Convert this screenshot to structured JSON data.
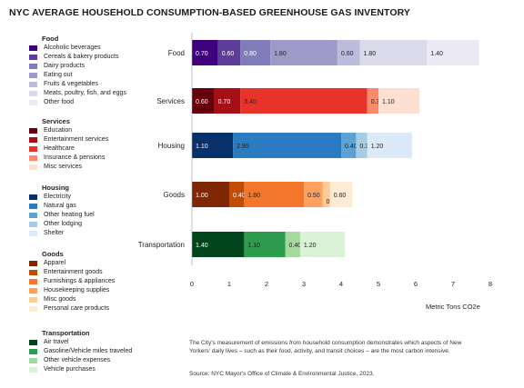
{
  "title": "NYC AVERAGE HOUSEHOLD CONSUMPTION-BASED GREENHOUSE GAS INVENTORY",
  "legend": [
    {
      "heading": "Food",
      "items": [
        {
          "label": "Alcoholic beverages",
          "color": "#3f007d"
        },
        {
          "label": "Cereals & bakery products",
          "color": "#5e3c99"
        },
        {
          "label": "Dairy products",
          "color": "#807dba"
        },
        {
          "label": "Eating out",
          "color": "#9e9ac8"
        },
        {
          "label": "Fruits & vegetables",
          "color": "#bcbddc"
        },
        {
          "label": "Meats, poultry, fish, and eggs",
          "color": "#dadaeb"
        },
        {
          "label": "Other food",
          "color": "#ebe9f3"
        }
      ]
    },
    {
      "heading": "Services",
      "items": [
        {
          "label": "Education",
          "color": "#67000d"
        },
        {
          "label": "Entertainment services",
          "color": "#a50f15"
        },
        {
          "label": "Healthcare",
          "color": "#e8332b"
        },
        {
          "label": "Insurance & pensions",
          "color": "#fc8a6a"
        },
        {
          "label": "Misc services",
          "color": "#fde0d2"
        }
      ]
    },
    {
      "heading": "Housing",
      "items": [
        {
          "label": "Electricity",
          "color": "#08306b"
        },
        {
          "label": "Natural gas",
          "color": "#2a7bc1"
        },
        {
          "label": "Other heating fuel",
          "color": "#5da2d3"
        },
        {
          "label": "Other lodging",
          "color": "#a5cce5"
        },
        {
          "label": "Shelter",
          "color": "#dceaf7"
        }
      ]
    },
    {
      "heading": "Goods",
      "items": [
        {
          "label": "Apparel",
          "color": "#7f2704"
        },
        {
          "label": "Entertainment goods",
          "color": "#c14c06"
        },
        {
          "label": "Furnishings & appliances",
          "color": "#f4762b"
        },
        {
          "label": "Housekeeping supplies",
          "color": "#fda060"
        },
        {
          "label": "Misc goods",
          "color": "#fdcb95"
        },
        {
          "label": "Personal care products",
          "color": "#fdebd3"
        }
      ]
    },
    {
      "heading": "Transportation",
      "items": [
        {
          "label": "Air travel",
          "color": "#00441b"
        },
        {
          "label": "Gasoline/Vehicle miles traveled",
          "color": "#2d9c4e"
        },
        {
          "label": "Other vehicle expenses",
          "color": "#a4d99e"
        },
        {
          "label": "Vehicle purchases",
          "color": "#dcf2d8"
        }
      ]
    }
  ],
  "chart_data": {
    "type": "bar",
    "orientation": "horizontal",
    "stacked": true,
    "title": "NYC AVERAGE HOUSEHOLD CONSUMPTION-BASED GREENHOUSE GAS INVENTORY",
    "xlabel": "Metric Tons CO2e",
    "xlim": [
      0,
      8
    ],
    "xticks": [
      0,
      1,
      2,
      3,
      4,
      5,
      6,
      7,
      8
    ],
    "grid": false,
    "categories": [
      "Food",
      "Services",
      "Housing",
      "Goods",
      "Transportation"
    ],
    "bars": [
      {
        "category": "Food",
        "segments": [
          {
            "label": "0.70",
            "value": 0.7,
            "color": "#3f007d",
            "text_color": "#ffffff"
          },
          {
            "label": "0.60",
            "value": 0.6,
            "color": "#5e3c99",
            "text_color": "#ffffff"
          },
          {
            "label": "0.80",
            "value": 0.8,
            "color": "#807dba",
            "text_color": "#ffffff"
          },
          {
            "label": "1.80",
            "value": 1.8,
            "color": "#9e9ac8",
            "text_color": "#222222"
          },
          {
            "label": "0.60",
            "value": 0.6,
            "color": "#bcbddc",
            "text_color": "#222222"
          },
          {
            "label": "1.80",
            "value": 1.8,
            "color": "#dadaeb",
            "text_color": "#222222"
          },
          {
            "label": "1.40",
            "value": 1.4,
            "color": "#ebe9f3",
            "text_color": "#222222"
          }
        ]
      },
      {
        "category": "Services",
        "segments": [
          {
            "label": "0.60",
            "value": 0.6,
            "color": "#67000d",
            "text_color": "#ffffff"
          },
          {
            "label": "0.70",
            "value": 0.7,
            "color": "#a50f15",
            "text_color": "#ffffff"
          },
          {
            "label": "3.40",
            "value": 3.4,
            "color": "#e8332b",
            "text_color": "#222222"
          },
          {
            "label": "0.30",
            "value": 0.3,
            "color": "#fc8a6a",
            "text_color": "#222222"
          },
          {
            "label": "1.10",
            "value": 1.1,
            "color": "#fde0d2",
            "text_color": "#222222"
          }
        ]
      },
      {
        "category": "Housing",
        "segments": [
          {
            "label": "1.10",
            "value": 1.1,
            "color": "#08306b",
            "text_color": "#ffffff"
          },
          {
            "label": "2.90",
            "value": 2.9,
            "color": "#2a7bc1",
            "text_color": "#222222"
          },
          {
            "label": "0.40",
            "value": 0.4,
            "color": "#5da2d3",
            "text_color": "#222222"
          },
          {
            "label": "0.30",
            "value": 0.3,
            "color": "#a5cce5",
            "text_color": "#222222"
          },
          {
            "label": "1.20",
            "value": 1.2,
            "color": "#dceaf7",
            "text_color": "#222222"
          }
        ]
      },
      {
        "category": "Goods",
        "segments": [
          {
            "label": "1.00",
            "value": 1.0,
            "color": "#7f2704",
            "text_color": "#ffffff"
          },
          {
            "label": "0.40",
            "value": 0.4,
            "color": "#c14c06",
            "text_color": "#ffffff"
          },
          {
            "label": "1.60",
            "value": 1.6,
            "color": "#f4762b",
            "text_color": "#222222"
          },
          {
            "label": "0.50",
            "value": 0.5,
            "color": "#fda060",
            "text_color": "#222222"
          },
          {
            "label": "0.20",
            "value": 0.2,
            "color": "#fdcb95",
            "text_color": "#222222",
            "label_below": true
          },
          {
            "label": "0.60",
            "value": 0.6,
            "color": "#fdebd3",
            "text_color": "#222222"
          }
        ]
      },
      {
        "category": "Transportation",
        "segments": [
          {
            "label": "1.40",
            "value": 1.4,
            "color": "#00441b",
            "text_color": "#ffffff"
          },
          {
            "label": "1.10",
            "value": 1.1,
            "color": "#2d9c4e",
            "text_color": "#222222"
          },
          {
            "label": "0.40",
            "value": 0.4,
            "color": "#a4d99e",
            "text_color": "#222222"
          },
          {
            "label": "1.20",
            "value": 1.2,
            "color": "#dcf2d8",
            "text_color": "#222222"
          }
        ]
      }
    ]
  },
  "note": "The City's measurement of emissions from household consumption demonstrates which aspects of New Yorkers' daily lives – such as their food, activity, and transit choices – are the most carbon intensive.",
  "source": "Source: NYC Mayor's Office of Climate & Environmental Justice, 2023."
}
